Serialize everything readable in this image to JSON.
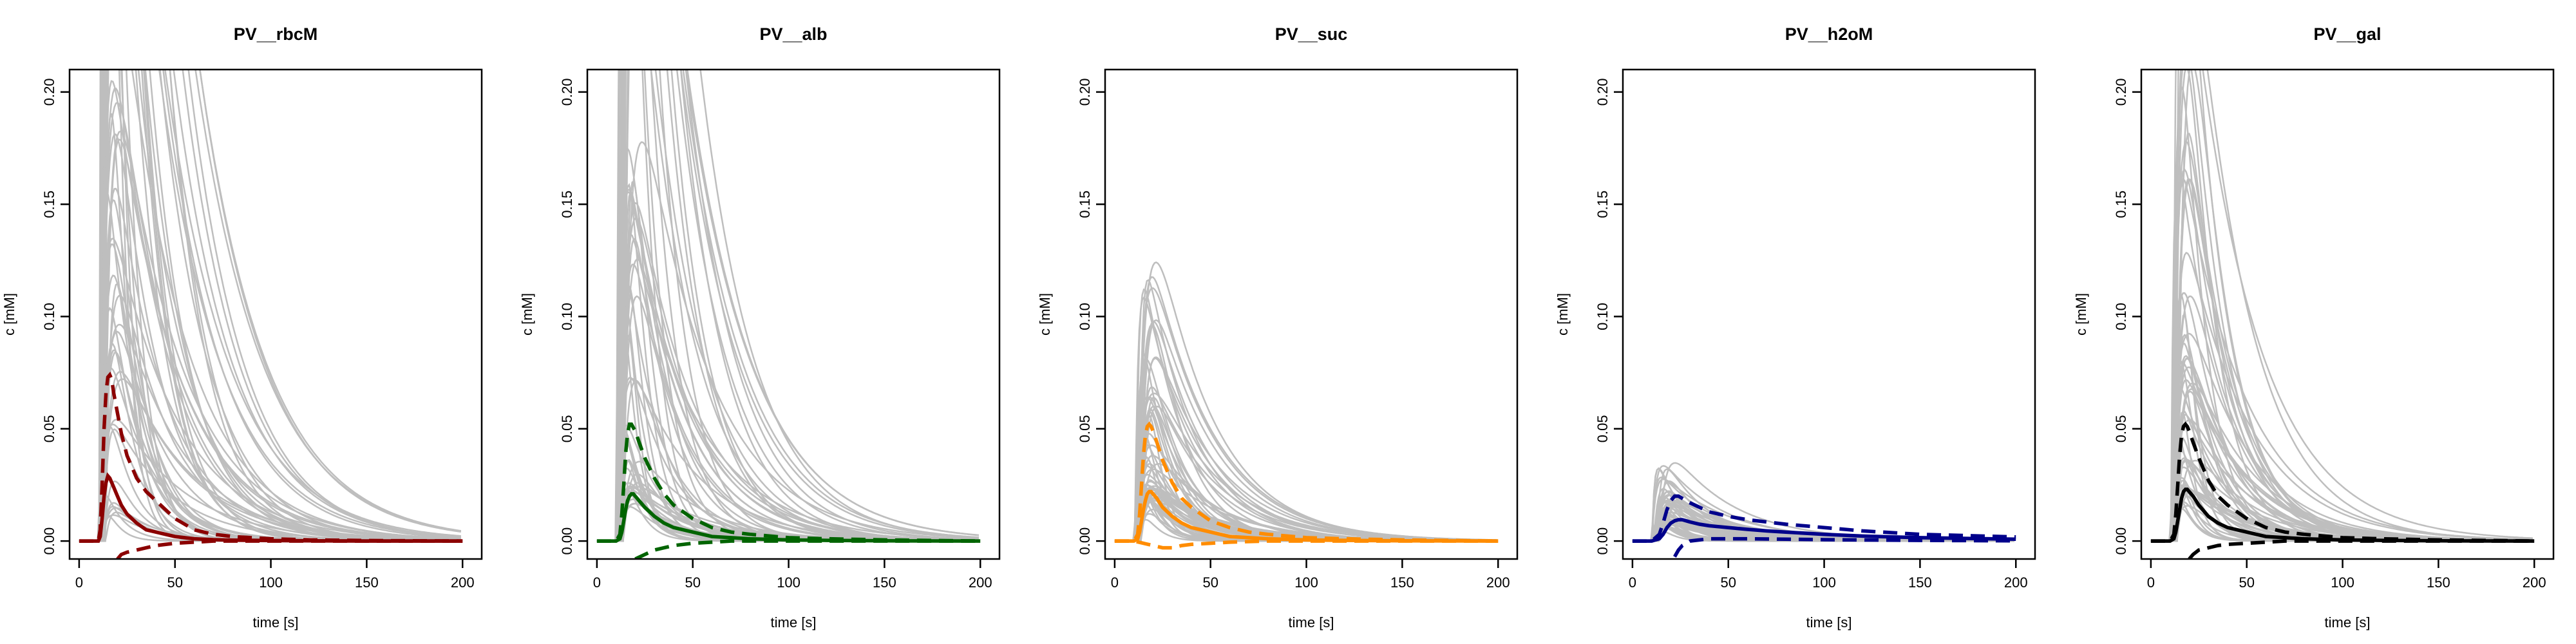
{
  "chart_data": [
    {
      "type": "line",
      "title": "PV__rbcM",
      "xlabel": "time [s]",
      "ylabel": "c [mM]",
      "xlim": [
        -5,
        210
      ],
      "ylim": [
        -0.008,
        0.21
      ],
      "x_ticks": [
        0,
        50,
        100,
        150,
        200
      ],
      "y_ticks": [
        "0.00",
        "0.05",
        "0.10",
        "0.15",
        "0.20"
      ],
      "color": "#8b0000",
      "sim_peak_range": [
        0.02,
        1.2
      ],
      "series": [
        {
          "role": "mean",
          "x": [
            0,
            10,
            11,
            12,
            13,
            14,
            15,
            16,
            17,
            18,
            20,
            22,
            25,
            30,
            35,
            40,
            50,
            60,
            70,
            80,
            100,
            120,
            150,
            200
          ],
          "values": [
            0,
            0,
            0.002,
            0.01,
            0.02,
            0.026,
            0.029,
            0.028,
            0.026,
            0.024,
            0.02,
            0.016,
            0.012,
            0.008,
            0.005,
            0.004,
            0.002,
            0.001,
            0.0006,
            0.0004,
            0.0002,
            0.0001,
            0,
            0
          ]
        },
        {
          "role": "upper",
          "x": [
            0,
            10,
            11,
            12,
            13,
            14,
            15,
            16,
            17,
            18,
            20,
            22,
            25,
            30,
            35,
            40,
            50,
            60,
            70,
            80,
            100,
            120,
            150,
            200
          ],
          "values": [
            0,
            0,
            0.005,
            0.025,
            0.05,
            0.066,
            0.073,
            0.074,
            0.072,
            0.066,
            0.057,
            0.048,
            0.038,
            0.028,
            0.022,
            0.018,
            0.01,
            0.005,
            0.003,
            0.002,
            0.001,
            0.0005,
            0.0002,
            0
          ]
        },
        {
          "role": "lower",
          "x": [
            20,
            22,
            25,
            30,
            35,
            40,
            50,
            60,
            70,
            80,
            100,
            120,
            150,
            200
          ],
          "values": [
            -0.008,
            -0.006,
            -0.005,
            -0.004,
            -0.003,
            -0.002,
            -0.001,
            -0.0005,
            0,
            0,
            0,
            0,
            0,
            0
          ]
        }
      ]
    },
    {
      "type": "line",
      "title": "PV__alb",
      "xlabel": "time [s]",
      "ylabel": "c [mM]",
      "xlim": [
        -5,
        210
      ],
      "ylim": [
        -0.008,
        0.21
      ],
      "x_ticks": [
        0,
        50,
        100,
        150,
        200
      ],
      "y_ticks": [
        "0.00",
        "0.05",
        "0.10",
        "0.15",
        "0.20"
      ],
      "color": "#006400",
      "sim_peak_range": [
        0.03,
        0.9
      ],
      "series": [
        {
          "role": "mean",
          "x": [
            0,
            10,
            12,
            13,
            14,
            15,
            16,
            17,
            18,
            19,
            20,
            22,
            25,
            30,
            35,
            40,
            50,
            60,
            70,
            80,
            100,
            120,
            150,
            200
          ],
          "values": [
            0,
            0,
            0.001,
            0.004,
            0.009,
            0.014,
            0.018,
            0.02,
            0.021,
            0.021,
            0.02,
            0.018,
            0.015,
            0.011,
            0.008,
            0.006,
            0.004,
            0.002,
            0.0015,
            0.001,
            0.0005,
            0.0003,
            0.0001,
            0
          ]
        },
        {
          "role": "upper",
          "x": [
            0,
            10,
            12,
            13,
            14,
            15,
            16,
            17,
            18,
            20,
            22,
            25,
            30,
            35,
            40,
            50,
            60,
            70,
            80,
            100,
            120,
            150,
            200
          ],
          "values": [
            0,
            0,
            0.003,
            0.012,
            0.025,
            0.039,
            0.048,
            0.052,
            0.052,
            0.049,
            0.044,
            0.037,
            0.028,
            0.021,
            0.016,
            0.01,
            0.006,
            0.004,
            0.003,
            0.0015,
            0.001,
            0.0005,
            0
          ]
        },
        {
          "role": "lower",
          "x": [
            20,
            25,
            30,
            35,
            40,
            50,
            60,
            70,
            80,
            100,
            120,
            150,
            200
          ],
          "values": [
            -0.008,
            -0.006,
            -0.004,
            -0.003,
            -0.002,
            -0.001,
            -0.0005,
            0,
            0,
            0,
            0,
            0,
            0
          ]
        }
      ]
    },
    {
      "type": "line",
      "title": "PV__suc",
      "xlabel": "time [s]",
      "ylabel": "c [mM]",
      "xlim": [
        -5,
        210
      ],
      "ylim": [
        -0.008,
        0.21
      ],
      "x_ticks": [
        0,
        50,
        100,
        150,
        200
      ],
      "y_ticks": [
        "0.00",
        "0.05",
        "0.10",
        "0.15",
        "0.20"
      ],
      "color": "#ff8c00",
      "sim_peak_range": [
        0.03,
        0.2
      ],
      "series": [
        {
          "role": "mean",
          "x": [
            0,
            10,
            12,
            13,
            14,
            15,
            16,
            17,
            18,
            19,
            20,
            22,
            25,
            30,
            35,
            40,
            50,
            60,
            70,
            80,
            100,
            120,
            150,
            200
          ],
          "values": [
            0,
            0,
            0.001,
            0.004,
            0.009,
            0.014,
            0.018,
            0.021,
            0.022,
            0.022,
            0.021,
            0.019,
            0.015,
            0.011,
            0.008,
            0.006,
            0.004,
            0.002,
            0.0015,
            0.001,
            0.0005,
            0.0003,
            0.0001,
            0
          ]
        },
        {
          "role": "upper",
          "x": [
            0,
            10,
            12,
            13,
            14,
            15,
            16,
            17,
            18,
            19,
            20,
            22,
            25,
            30,
            35,
            40,
            50,
            60,
            70,
            80,
            100,
            120,
            150,
            200
          ],
          "values": [
            0,
            0,
            0.003,
            0.012,
            0.025,
            0.038,
            0.047,
            0.051,
            0.052,
            0.051,
            0.049,
            0.044,
            0.036,
            0.026,
            0.019,
            0.015,
            0.009,
            0.006,
            0.004,
            0.003,
            0.0015,
            0.001,
            0.0005,
            0
          ]
        },
        {
          "role": "lower",
          "x": [
            0,
            10,
            15,
            20,
            25,
            30,
            35,
            40,
            50,
            60,
            80,
            100,
            150,
            200
          ],
          "values": [
            0,
            0,
            -0.001,
            -0.002,
            -0.003,
            -0.003,
            -0.002,
            -0.0015,
            -0.001,
            -0.0005,
            0,
            0,
            0,
            0
          ]
        }
      ]
    },
    {
      "type": "line",
      "title": "PV__h2oM",
      "xlabel": "time [s]",
      "ylabel": "c [mM]",
      "xlim": [
        -5,
        210
      ],
      "ylim": [
        -0.008,
        0.21
      ],
      "x_ticks": [
        0,
        50,
        100,
        150,
        200
      ],
      "y_ticks": [
        "0.00",
        "0.05",
        "0.10",
        "0.15",
        "0.20"
      ],
      "color": "#00008b",
      "sim_peak_range": [
        0.012,
        0.053
      ],
      "series": [
        {
          "role": "mean",
          "x": [
            0,
            10,
            14,
            16,
            18,
            20,
            22,
            24,
            26,
            28,
            30,
            35,
            40,
            50,
            60,
            70,
            80,
            100,
            120,
            150,
            200
          ],
          "values": [
            0,
            0,
            0.001,
            0.003,
            0.006,
            0.008,
            0.009,
            0.0095,
            0.0095,
            0.009,
            0.0085,
            0.0075,
            0.0068,
            0.006,
            0.0052,
            0.0045,
            0.004,
            0.003,
            0.0022,
            0.0015,
            0.0008
          ]
        },
        {
          "role": "upper",
          "x": [
            0,
            10,
            14,
            16,
            18,
            20,
            22,
            24,
            26,
            28,
            30,
            35,
            40,
            50,
            60,
            70,
            80,
            100,
            120,
            150,
            200
          ],
          "values": [
            0,
            0,
            0.003,
            0.008,
            0.014,
            0.018,
            0.02,
            0.02,
            0.019,
            0.018,
            0.017,
            0.015,
            0.013,
            0.011,
            0.0095,
            0.0085,
            0.0075,
            0.006,
            0.0045,
            0.003,
            0.0018
          ]
        },
        {
          "role": "lower",
          "x": [
            22,
            24,
            26,
            28,
            30,
            35,
            40,
            50,
            60,
            80,
            100,
            150,
            200
          ],
          "values": [
            -0.007,
            -0.004,
            -0.002,
            -0.001,
            0,
            0.0005,
            0.001,
            0.001,
            0.001,
            0.0008,
            0.0006,
            0.0003,
            0.0001
          ]
        }
      ]
    },
    {
      "type": "line",
      "title": "PV__gal",
      "xlabel": "time [s]",
      "ylabel": "c [mM]",
      "xlim": [
        -5,
        210
      ],
      "ylim": [
        -0.008,
        0.21
      ],
      "x_ticks": [
        0,
        50,
        100,
        150,
        200
      ],
      "y_ticks": [
        "0.00",
        "0.05",
        "0.10",
        "0.15",
        "0.20"
      ],
      "color": "#000000",
      "sim_peak_range": [
        0.03,
        0.45
      ],
      "series": [
        {
          "role": "mean",
          "x": [
            0,
            10,
            12,
            13,
            14,
            15,
            16,
            17,
            18,
            19,
            20,
            22,
            25,
            30,
            35,
            40,
            50,
            60,
            70,
            80,
            100,
            120,
            150,
            200
          ],
          "values": [
            0,
            0,
            0.001,
            0.004,
            0.009,
            0.014,
            0.019,
            0.022,
            0.023,
            0.023,
            0.022,
            0.02,
            0.016,
            0.011,
            0.008,
            0.006,
            0.004,
            0.002,
            0.0015,
            0.001,
            0.0005,
            0.0003,
            0.0001,
            0
          ]
        },
        {
          "role": "upper",
          "x": [
            0,
            10,
            12,
            13,
            14,
            15,
            16,
            17,
            18,
            19,
            20,
            22,
            25,
            30,
            35,
            40,
            50,
            60,
            70,
            80,
            100,
            120,
            150,
            200
          ],
          "values": [
            0,
            0,
            0.003,
            0.012,
            0.025,
            0.038,
            0.047,
            0.051,
            0.052,
            0.051,
            0.049,
            0.044,
            0.037,
            0.027,
            0.02,
            0.016,
            0.01,
            0.006,
            0.004,
            0.003,
            0.0015,
            0.001,
            0.0005,
            0
          ]
        },
        {
          "role": "lower",
          "x": [
            20,
            22,
            25,
            30,
            35,
            40,
            50,
            60,
            70,
            80,
            100,
            120,
            150,
            200
          ],
          "values": [
            -0.008,
            -0.006,
            -0.004,
            -0.003,
            -0.002,
            -0.0015,
            -0.001,
            -0.0005,
            0,
            0,
            0,
            0,
            0,
            0
          ]
        }
      ]
    }
  ]
}
